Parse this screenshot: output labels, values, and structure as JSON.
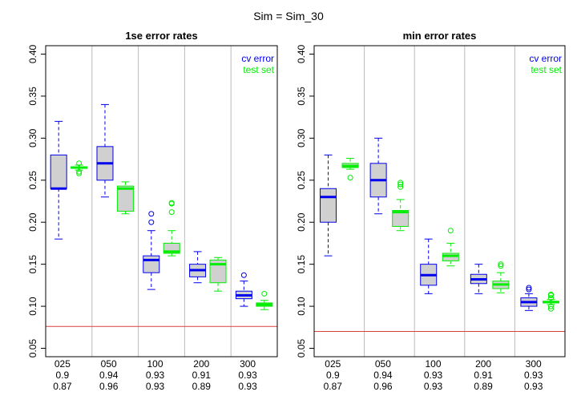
{
  "suptitle": "Sim = Sim_30",
  "colors": {
    "cv": "#0000ee",
    "test": "#00ee00",
    "box_fill": "#d0d0d0",
    "hline": "#d94040",
    "divider": "#bbbbbb"
  },
  "chart_data": [
    {
      "type": "boxplot",
      "title": "1se error rates",
      "ylim": [
        0.04,
        0.41
      ],
      "yticks": [
        "0.05",
        "0.10",
        "0.15",
        "0.20",
        "0.25",
        "0.30",
        "0.35",
        "0.40"
      ],
      "hline": 0.076,
      "legend": [
        "cv error",
        "test set"
      ],
      "legend_position": "top-right",
      "groups": [
        {
          "label": "025",
          "line2": "0.9",
          "line3": "0.87"
        },
        {
          "label": "050",
          "line2": "0.94",
          "line3": "0.96"
        },
        {
          "label": "100",
          "line2": "0.93",
          "line3": "0.93"
        },
        {
          "label": "200",
          "line2": "0.91",
          "line3": "0.89"
        },
        {
          "label": "300",
          "line2": "0.93",
          "line3": "0.93"
        }
      ],
      "series": [
        {
          "name": "cv error",
          "boxes": [
            {
              "wlo": 0.18,
              "q1": 0.24,
              "med": 0.24,
              "q3": 0.28,
              "whi": 0.32,
              "out": []
            },
            {
              "wlo": 0.23,
              "q1": 0.25,
              "med": 0.27,
              "q3": 0.29,
              "whi": 0.34,
              "out": []
            },
            {
              "wlo": 0.12,
              "q1": 0.14,
              "med": 0.155,
              "q3": 0.16,
              "whi": 0.19,
              "out": [
                0.2,
                0.21
              ]
            },
            {
              "wlo": 0.128,
              "q1": 0.135,
              "med": 0.143,
              "q3": 0.15,
              "whi": 0.165,
              "out": []
            },
            {
              "wlo": 0.1,
              "q1": 0.109,
              "med": 0.113,
              "q3": 0.118,
              "whi": 0.13,
              "out": [
                0.137
              ]
            }
          ]
        },
        {
          "name": "test set",
          "boxes": [
            {
              "wlo": 0.262,
              "q1": 0.264,
              "med": 0.265,
              "q3": 0.266,
              "whi": 0.268,
              "out": [
                0.258,
                0.26,
                0.27
              ]
            },
            {
              "wlo": 0.21,
              "q1": 0.213,
              "med": 0.24,
              "q3": 0.243,
              "whi": 0.248,
              "out": []
            },
            {
              "wlo": 0.16,
              "q1": 0.163,
              "med": 0.165,
              "q3": 0.175,
              "whi": 0.19,
              "out": [
                0.212,
                0.222,
                0.223
              ]
            },
            {
              "wlo": 0.118,
              "q1": 0.128,
              "med": 0.15,
              "q3": 0.155,
              "whi": 0.158,
              "out": []
            },
            {
              "wlo": 0.096,
              "q1": 0.1,
              "med": 0.102,
              "q3": 0.104,
              "whi": 0.107,
              "out": [
                0.115
              ]
            }
          ]
        }
      ]
    },
    {
      "type": "boxplot",
      "title": "min error rates",
      "ylim": [
        0.04,
        0.41
      ],
      "yticks": [
        "0.05",
        "0.10",
        "0.15",
        "0.20",
        "0.25",
        "0.30",
        "0.35",
        "0.40"
      ],
      "hline": 0.07,
      "legend": [
        "cv error",
        "test set"
      ],
      "legend_position": "top-right",
      "groups": [
        {
          "label": "025",
          "line2": "0.9",
          "line3": "0.87"
        },
        {
          "label": "050",
          "line2": "0.94",
          "line3": "0.96"
        },
        {
          "label": "100",
          "line2": "0.93",
          "line3": "0.93"
        },
        {
          "label": "200",
          "line2": "0.91",
          "line3": "0.89"
        },
        {
          "label": "300",
          "line2": "0.93",
          "line3": "0.93"
        }
      ],
      "series": [
        {
          "name": "cv error",
          "boxes": [
            {
              "wlo": 0.16,
              "q1": 0.2,
              "med": 0.23,
              "q3": 0.24,
              "whi": 0.28,
              "out": []
            },
            {
              "wlo": 0.21,
              "q1": 0.23,
              "med": 0.25,
              "q3": 0.27,
              "whi": 0.3,
              "out": []
            },
            {
              "wlo": 0.115,
              "q1": 0.125,
              "med": 0.137,
              "q3": 0.15,
              "whi": 0.18,
              "out": []
            },
            {
              "wlo": 0.115,
              "q1": 0.127,
              "med": 0.132,
              "q3": 0.138,
              "whi": 0.15,
              "out": []
            },
            {
              "wlo": 0.095,
              "q1": 0.1,
              "med": 0.105,
              "q3": 0.11,
              "whi": 0.115,
              "out": [
                0.12,
                0.122
              ]
            }
          ]
        },
        {
          "name": "test set",
          "boxes": [
            {
              "wlo": 0.263,
              "q1": 0.265,
              "med": 0.267,
              "q3": 0.27,
              "whi": 0.276,
              "out": [
                0.253
              ]
            },
            {
              "wlo": 0.19,
              "q1": 0.195,
              "med": 0.212,
              "q3": 0.214,
              "whi": 0.227,
              "out": [
                0.242,
                0.245,
                0.247
              ]
            },
            {
              "wlo": 0.148,
              "q1": 0.154,
              "med": 0.16,
              "q3": 0.163,
              "whi": 0.175,
              "out": [
                0.19
              ]
            },
            {
              "wlo": 0.116,
              "q1": 0.121,
              "med": 0.126,
              "q3": 0.13,
              "whi": 0.14,
              "out": [
                0.148,
                0.15
              ]
            },
            {
              "wlo": 0.102,
              "q1": 0.104,
              "med": 0.105,
              "q3": 0.106,
              "whi": 0.108,
              "out": [
                0.097,
                0.1,
                0.11,
                0.113,
                0.114
              ]
            }
          ]
        }
      ]
    }
  ]
}
